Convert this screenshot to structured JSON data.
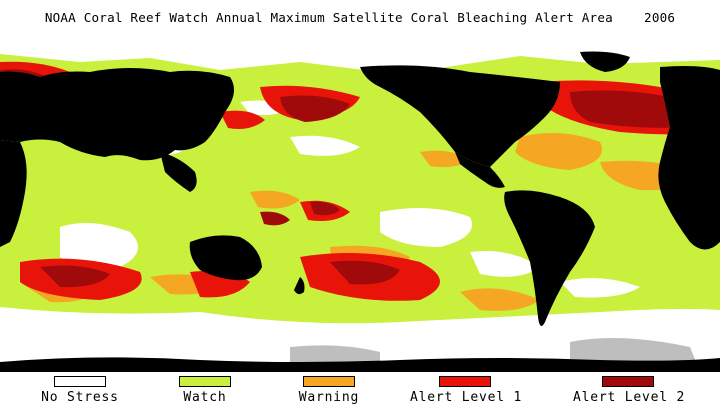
{
  "title": "NOAA Coral Reef Watch Annual Maximum Satellite Coral Bleaching Alert Area    2006",
  "legend": [
    {
      "label": "No Stress",
      "color": "#ffffff"
    },
    {
      "label": "Watch",
      "color": "#c8f03c"
    },
    {
      "label": "Warning",
      "color": "#f5a623"
    },
    {
      "label": "Alert Level 1",
      "color": "#e8140a"
    },
    {
      "label": "Alert Level 2",
      "color": "#a00a0a"
    }
  ],
  "colors": {
    "land": "#000000",
    "ice": "#ffffff",
    "no_data": "#bebebe"
  }
}
